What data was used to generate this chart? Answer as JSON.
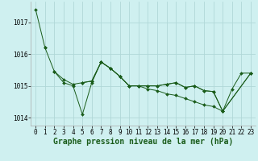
{
  "bg_color": "#cff0f0",
  "grid_color": "#b0d8d8",
  "line_color": "#1a5c1a",
  "hours": [
    0,
    1,
    2,
    3,
    4,
    5,
    6,
    7,
    8,
    9,
    10,
    11,
    12,
    13,
    14,
    15,
    16,
    17,
    18,
    19,
    20,
    21,
    22,
    23
  ],
  "series": [
    [
      1017.4,
      1016.2,
      null,
      null,
      null,
      null,
      null,
      null,
      null,
      null,
      null,
      null,
      null,
      null,
      null,
      null,
      null,
      null,
      null,
      null,
      null,
      null,
      null,
      null
    ],
    [
      null,
      1016.2,
      1015.45,
      1015.2,
      1015.05,
      1015.1,
      1015.15,
      1015.75,
      1015.55,
      1015.3,
      1015.0,
      1015.0,
      1014.9,
      1014.85,
      1014.75,
      1014.7,
      1014.6,
      1014.5,
      1014.4,
      1014.35,
      1014.2,
      null,
      null,
      1015.4
    ],
    [
      null,
      null,
      1015.45,
      1015.1,
      1015.0,
      1014.1,
      1015.1,
      1015.75,
      1015.55,
      1015.3,
      1015.0,
      1015.0,
      1015.0,
      1015.0,
      1015.05,
      1015.1,
      1014.95,
      1015.0,
      1014.85,
      1014.82,
      1014.2,
      1014.9,
      1015.4,
      1015.4
    ],
    [
      null,
      null,
      null,
      null,
      null,
      1015.1,
      1015.15,
      1015.75,
      1015.55,
      1015.3,
      1015.0,
      1015.0,
      1015.0,
      1015.0,
      1015.05,
      1015.1,
      1014.95,
      1015.0,
      1014.85,
      1014.82,
      1014.2,
      null,
      null,
      1015.4
    ]
  ],
  "ylim": [
    1013.75,
    1017.65
  ],
  "yticks": [
    1014,
    1015,
    1016,
    1017
  ],
  "xticks": [
    0,
    1,
    2,
    3,
    4,
    5,
    6,
    7,
    8,
    9,
    10,
    11,
    12,
    13,
    14,
    15,
    16,
    17,
    18,
    19,
    20,
    21,
    22,
    23
  ],
  "xlabel": "Graphe pression niveau de la mer (hPa)",
  "tick_fontsize": 5.5,
  "xlabel_fontsize": 7.0,
  "markersize": 2.0,
  "linewidth": 0.7
}
